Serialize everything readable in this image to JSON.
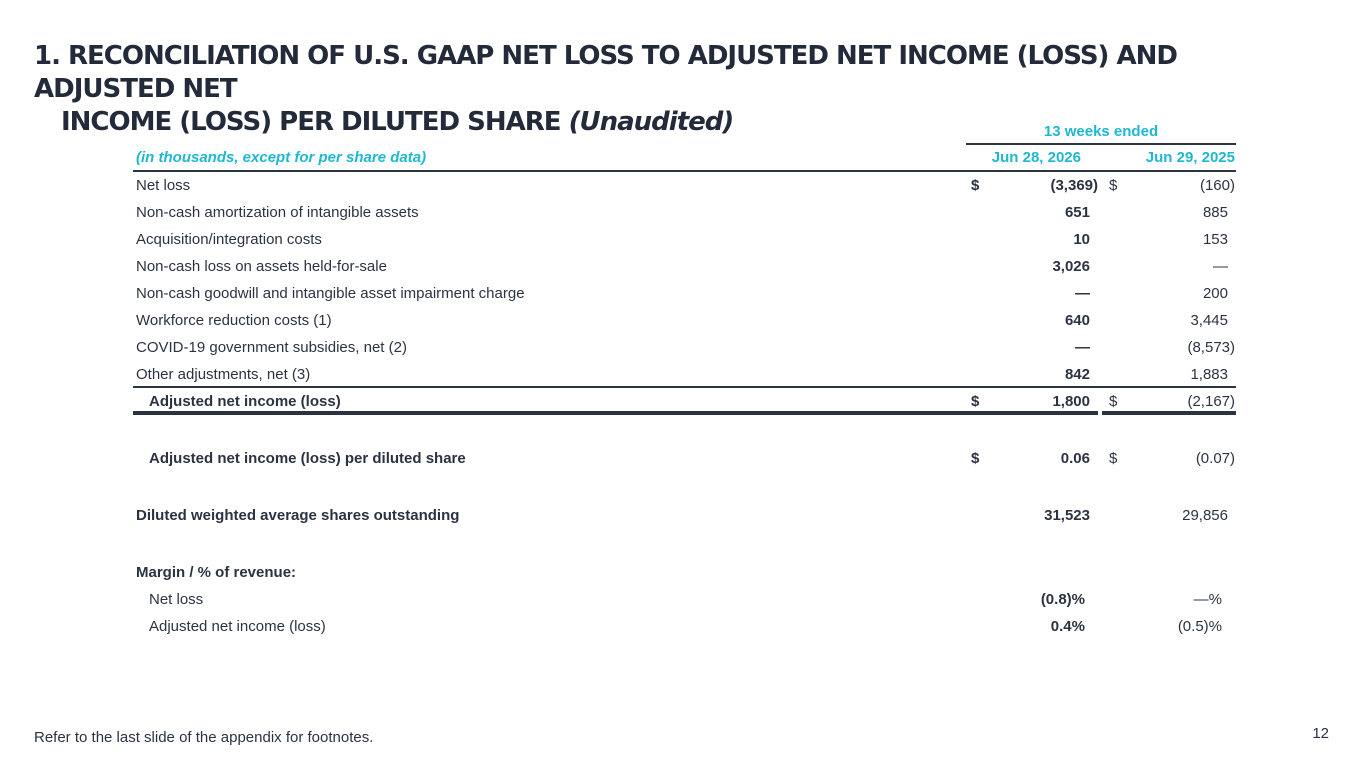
{
  "title": {
    "line1": "1. RECONCILIATION OF U.S. GAAP NET LOSS TO ADJUSTED NET INCOME (LOSS) AND ADJUSTED NET",
    "line2": "INCOME (LOSS) PER DILUTED SHARE",
    "line2_italic": "(Unaudited)"
  },
  "table": {
    "group_header": "13 weeks ended",
    "label_header": "(in thousands, except for per share data)",
    "col1_header": "Jun 28, 2026",
    "col2_header": "Jun 29, 2025",
    "rows": [
      {
        "label": "Net loss",
        "d1": "$",
        "v1": "(3,369)",
        "d2": "$",
        "v2": "(160)"
      },
      {
        "label": "Non-cash amortization of intangible assets",
        "d1": "",
        "v1": "651",
        "d2": "",
        "v2": "885"
      },
      {
        "label": "Acquisition/integration costs",
        "d1": "",
        "v1": "10",
        "d2": "",
        "v2": "153"
      },
      {
        "label": "Non-cash loss on assets held-for-sale",
        "d1": "",
        "v1": "3,026",
        "d2": "",
        "v2": "—"
      },
      {
        "label": "Non-cash goodwill and intangible asset impairment charge",
        "d1": "",
        "v1": "—",
        "d2": "",
        "v2": "200"
      },
      {
        "label": "Workforce reduction costs (1)",
        "d1": "",
        "v1": "640",
        "d2": "",
        "v2": "3,445"
      },
      {
        "label": "COVID-19 government subsidies, net (2)",
        "d1": "",
        "v1": "—",
        "d2": "",
        "v2": "(8,573)"
      },
      {
        "label": "Other adjustments, net (3)",
        "d1": "",
        "v1": "842",
        "d2": "",
        "v2": "1,883"
      }
    ],
    "adjusted_net_income": {
      "label": "Adjusted net income (loss)",
      "d1": "$",
      "v1": "1,800",
      "d2": "$",
      "v2": "(2,167)"
    },
    "per_share": {
      "label": "Adjusted net income (loss) per diluted share",
      "d1": "$",
      "v1": "0.06",
      "d2": "$",
      "v2": "(0.07)"
    },
    "shares": {
      "label": "Diluted weighted average shares outstanding",
      "v1": "31,523",
      "v2": "29,856"
    },
    "margin": {
      "heading": "Margin / % of revenue:",
      "net_loss": {
        "label": "Net loss",
        "v1": "(0.8)%",
        "v2": "—%"
      },
      "adjusted": {
        "label": "Adjusted net income (loss)",
        "v1": "0.4%",
        "v2": "(0.5)%"
      }
    }
  },
  "footnote": "Refer to the last slide of the appendix for footnotes.",
  "page_number": "12",
  "colors": {
    "accent": "#1fb8d0",
    "text": "#2b3342"
  }
}
